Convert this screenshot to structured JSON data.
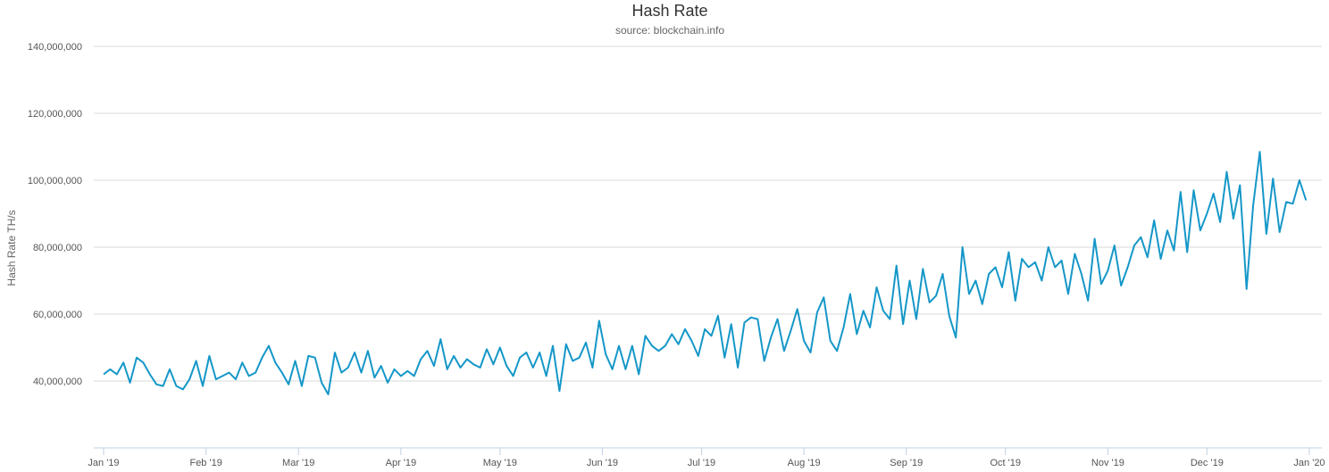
{
  "chart_data": {
    "type": "line",
    "title": "Hash Rate",
    "subtitle": "source: blockchain.info",
    "ylabel": "Hash Rate TH/s",
    "xlabel": "",
    "x_start": "2019-01-01",
    "x_end": "2020-01-01",
    "ylim": [
      20000000,
      140000000
    ],
    "yticks": [
      40000000,
      60000000,
      80000000,
      100000000,
      120000000,
      140000000
    ],
    "ytick_labels": [
      "40,000,000",
      "60,000,000",
      "80,000,000",
      "100,000,000",
      "120,000,000",
      "140,000,000"
    ],
    "xticks": [
      "2019-01-01",
      "2019-02-01",
      "2019-03-01",
      "2019-04-01",
      "2019-05-01",
      "2019-06-01",
      "2019-07-01",
      "2019-08-01",
      "2019-09-01",
      "2019-10-01",
      "2019-11-01",
      "2019-12-01",
      "2020-01-01"
    ],
    "xtick_labels": [
      "Jan '19",
      "Feb '19",
      "Mar '19",
      "Apr '19",
      "May '19",
      "Jun '19",
      "Jul '19",
      "Aug '19",
      "Sep '19",
      "Oct '19",
      "Nov '19",
      "Dec '19",
      "Jan '20"
    ],
    "grid": true,
    "legend": "none",
    "series": [
      {
        "color": "#1597c8",
        "points": [
          [
            "2019-01-01",
            42000000
          ],
          [
            "2019-01-03",
            43500000
          ],
          [
            "2019-01-05",
            42000000
          ],
          [
            "2019-01-07",
            45500000
          ],
          [
            "2019-01-09",
            39500000
          ],
          [
            "2019-01-11",
            47000000
          ],
          [
            "2019-01-13",
            45500000
          ],
          [
            "2019-01-15",
            42000000
          ],
          [
            "2019-01-17",
            39000000
          ],
          [
            "2019-01-19",
            38500000
          ],
          [
            "2019-01-21",
            43500000
          ],
          [
            "2019-01-23",
            38500000
          ],
          [
            "2019-01-25",
            37500000
          ],
          [
            "2019-01-27",
            40500000
          ],
          [
            "2019-01-29",
            46000000
          ],
          [
            "2019-01-31",
            38500000
          ],
          [
            "2019-02-02",
            47500000
          ],
          [
            "2019-02-04",
            40500000
          ],
          [
            "2019-02-06",
            41500000
          ],
          [
            "2019-02-08",
            42500000
          ],
          [
            "2019-02-10",
            40500000
          ],
          [
            "2019-02-12",
            45500000
          ],
          [
            "2019-02-14",
            41500000
          ],
          [
            "2019-02-16",
            42500000
          ],
          [
            "2019-02-18",
            47000000
          ],
          [
            "2019-02-20",
            50500000
          ],
          [
            "2019-02-22",
            45500000
          ],
          [
            "2019-02-24",
            42500000
          ],
          [
            "2019-02-26",
            39000000
          ],
          [
            "2019-02-28",
            46000000
          ],
          [
            "2019-03-02",
            38500000
          ],
          [
            "2019-03-04",
            47500000
          ],
          [
            "2019-03-06",
            47000000
          ],
          [
            "2019-03-08",
            39500000
          ],
          [
            "2019-03-10",
            36000000
          ],
          [
            "2019-03-12",
            48500000
          ],
          [
            "2019-03-14",
            42500000
          ],
          [
            "2019-03-16",
            44000000
          ],
          [
            "2019-03-18",
            48500000
          ],
          [
            "2019-03-20",
            42500000
          ],
          [
            "2019-03-22",
            49000000
          ],
          [
            "2019-03-24",
            41000000
          ],
          [
            "2019-03-26",
            44500000
          ],
          [
            "2019-03-28",
            39500000
          ],
          [
            "2019-03-30",
            43500000
          ],
          [
            "2019-04-01",
            41500000
          ],
          [
            "2019-04-03",
            43000000
          ],
          [
            "2019-04-05",
            41500000
          ],
          [
            "2019-04-07",
            46500000
          ],
          [
            "2019-04-09",
            49000000
          ],
          [
            "2019-04-11",
            44500000
          ],
          [
            "2019-04-13",
            52500000
          ],
          [
            "2019-04-15",
            43500000
          ],
          [
            "2019-04-17",
            47500000
          ],
          [
            "2019-04-19",
            44000000
          ],
          [
            "2019-04-21",
            46500000
          ],
          [
            "2019-04-23",
            45000000
          ],
          [
            "2019-04-25",
            44000000
          ],
          [
            "2019-04-27",
            49500000
          ],
          [
            "2019-04-29",
            45000000
          ],
          [
            "2019-05-01",
            50000000
          ],
          [
            "2019-05-03",
            44500000
          ],
          [
            "2019-05-05",
            41500000
          ],
          [
            "2019-05-07",
            47000000
          ],
          [
            "2019-05-09",
            48500000
          ],
          [
            "2019-05-11",
            44000000
          ],
          [
            "2019-05-13",
            48500000
          ],
          [
            "2019-05-15",
            41500000
          ],
          [
            "2019-05-17",
            50500000
          ],
          [
            "2019-05-19",
            37000000
          ],
          [
            "2019-05-21",
            51000000
          ],
          [
            "2019-05-23",
            46000000
          ],
          [
            "2019-05-25",
            47000000
          ],
          [
            "2019-05-27",
            51500000
          ],
          [
            "2019-05-29",
            44000000
          ],
          [
            "2019-05-31",
            58000000
          ],
          [
            "2019-06-02",
            48000000
          ],
          [
            "2019-06-04",
            43500000
          ],
          [
            "2019-06-06",
            50500000
          ],
          [
            "2019-06-08",
            43500000
          ],
          [
            "2019-06-10",
            50500000
          ],
          [
            "2019-06-12",
            42000000
          ],
          [
            "2019-06-14",
            53500000
          ],
          [
            "2019-06-16",
            50500000
          ],
          [
            "2019-06-18",
            49000000
          ],
          [
            "2019-06-20",
            50500000
          ],
          [
            "2019-06-22",
            54000000
          ],
          [
            "2019-06-24",
            51000000
          ],
          [
            "2019-06-26",
            55500000
          ],
          [
            "2019-06-28",
            52000000
          ],
          [
            "2019-06-30",
            47500000
          ],
          [
            "2019-07-02",
            55500000
          ],
          [
            "2019-07-04",
            53500000
          ],
          [
            "2019-07-06",
            59500000
          ],
          [
            "2019-07-08",
            47000000
          ],
          [
            "2019-07-10",
            57000000
          ],
          [
            "2019-07-12",
            44000000
          ],
          [
            "2019-07-14",
            57500000
          ],
          [
            "2019-07-16",
            59000000
          ],
          [
            "2019-07-18",
            58500000
          ],
          [
            "2019-07-20",
            46000000
          ],
          [
            "2019-07-22",
            53000000
          ],
          [
            "2019-07-24",
            58500000
          ],
          [
            "2019-07-26",
            49000000
          ],
          [
            "2019-07-28",
            55000000
          ],
          [
            "2019-07-30",
            61500000
          ],
          [
            "2019-08-01",
            52000000
          ],
          [
            "2019-08-03",
            48500000
          ],
          [
            "2019-08-05",
            60500000
          ],
          [
            "2019-08-07",
            65000000
          ],
          [
            "2019-08-09",
            52000000
          ],
          [
            "2019-08-11",
            49000000
          ],
          [
            "2019-08-13",
            56000000
          ],
          [
            "2019-08-15",
            66000000
          ],
          [
            "2019-08-17",
            54000000
          ],
          [
            "2019-08-19",
            61000000
          ],
          [
            "2019-08-21",
            56000000
          ],
          [
            "2019-08-23",
            68000000
          ],
          [
            "2019-08-25",
            61000000
          ],
          [
            "2019-08-27",
            58500000
          ],
          [
            "2019-08-29",
            74500000
          ],
          [
            "2019-08-31",
            57000000
          ],
          [
            "2019-09-02",
            70000000
          ],
          [
            "2019-09-04",
            58500000
          ],
          [
            "2019-09-06",
            73500000
          ],
          [
            "2019-09-08",
            63500000
          ],
          [
            "2019-09-10",
            65500000
          ],
          [
            "2019-09-12",
            72000000
          ],
          [
            "2019-09-14",
            59500000
          ],
          [
            "2019-09-16",
            53000000
          ],
          [
            "2019-09-18",
            80000000
          ],
          [
            "2019-09-20",
            66000000
          ],
          [
            "2019-09-22",
            70000000
          ],
          [
            "2019-09-24",
            63000000
          ],
          [
            "2019-09-26",
            72000000
          ],
          [
            "2019-09-28",
            74000000
          ],
          [
            "2019-09-30",
            68000000
          ],
          [
            "2019-10-02",
            78500000
          ],
          [
            "2019-10-04",
            64000000
          ],
          [
            "2019-10-06",
            76500000
          ],
          [
            "2019-10-08",
            74000000
          ],
          [
            "2019-10-10",
            75500000
          ],
          [
            "2019-10-12",
            70000000
          ],
          [
            "2019-10-14",
            80000000
          ],
          [
            "2019-10-16",
            74000000
          ],
          [
            "2019-10-18",
            76000000
          ],
          [
            "2019-10-20",
            66000000
          ],
          [
            "2019-10-22",
            78000000
          ],
          [
            "2019-10-24",
            72000000
          ],
          [
            "2019-10-26",
            64000000
          ],
          [
            "2019-10-28",
            82500000
          ],
          [
            "2019-10-30",
            69000000
          ],
          [
            "2019-11-01",
            73000000
          ],
          [
            "2019-11-03",
            80500000
          ],
          [
            "2019-11-05",
            68500000
          ],
          [
            "2019-11-07",
            74000000
          ],
          [
            "2019-11-09",
            80500000
          ],
          [
            "2019-11-11",
            83000000
          ],
          [
            "2019-11-13",
            77000000
          ],
          [
            "2019-11-15",
            88000000
          ],
          [
            "2019-11-17",
            76500000
          ],
          [
            "2019-11-19",
            85000000
          ],
          [
            "2019-11-21",
            79000000
          ],
          [
            "2019-11-23",
            96500000
          ],
          [
            "2019-11-25",
            78500000
          ],
          [
            "2019-11-27",
            97000000
          ],
          [
            "2019-11-29",
            85000000
          ],
          [
            "2019-12-01",
            90000000
          ],
          [
            "2019-12-03",
            96000000
          ],
          [
            "2019-12-05",
            87500000
          ],
          [
            "2019-12-07",
            102500000
          ],
          [
            "2019-12-09",
            88500000
          ],
          [
            "2019-12-11",
            98500000
          ],
          [
            "2019-12-13",
            67500000
          ],
          [
            "2019-12-15",
            92500000
          ],
          [
            "2019-12-17",
            108500000
          ],
          [
            "2019-12-19",
            84000000
          ],
          [
            "2019-12-21",
            100500000
          ],
          [
            "2019-12-23",
            84500000
          ],
          [
            "2019-12-25",
            93500000
          ],
          [
            "2019-12-27",
            93000000
          ],
          [
            "2019-12-29",
            100000000
          ],
          [
            "2019-12-31",
            94000000
          ]
        ]
      }
    ]
  }
}
